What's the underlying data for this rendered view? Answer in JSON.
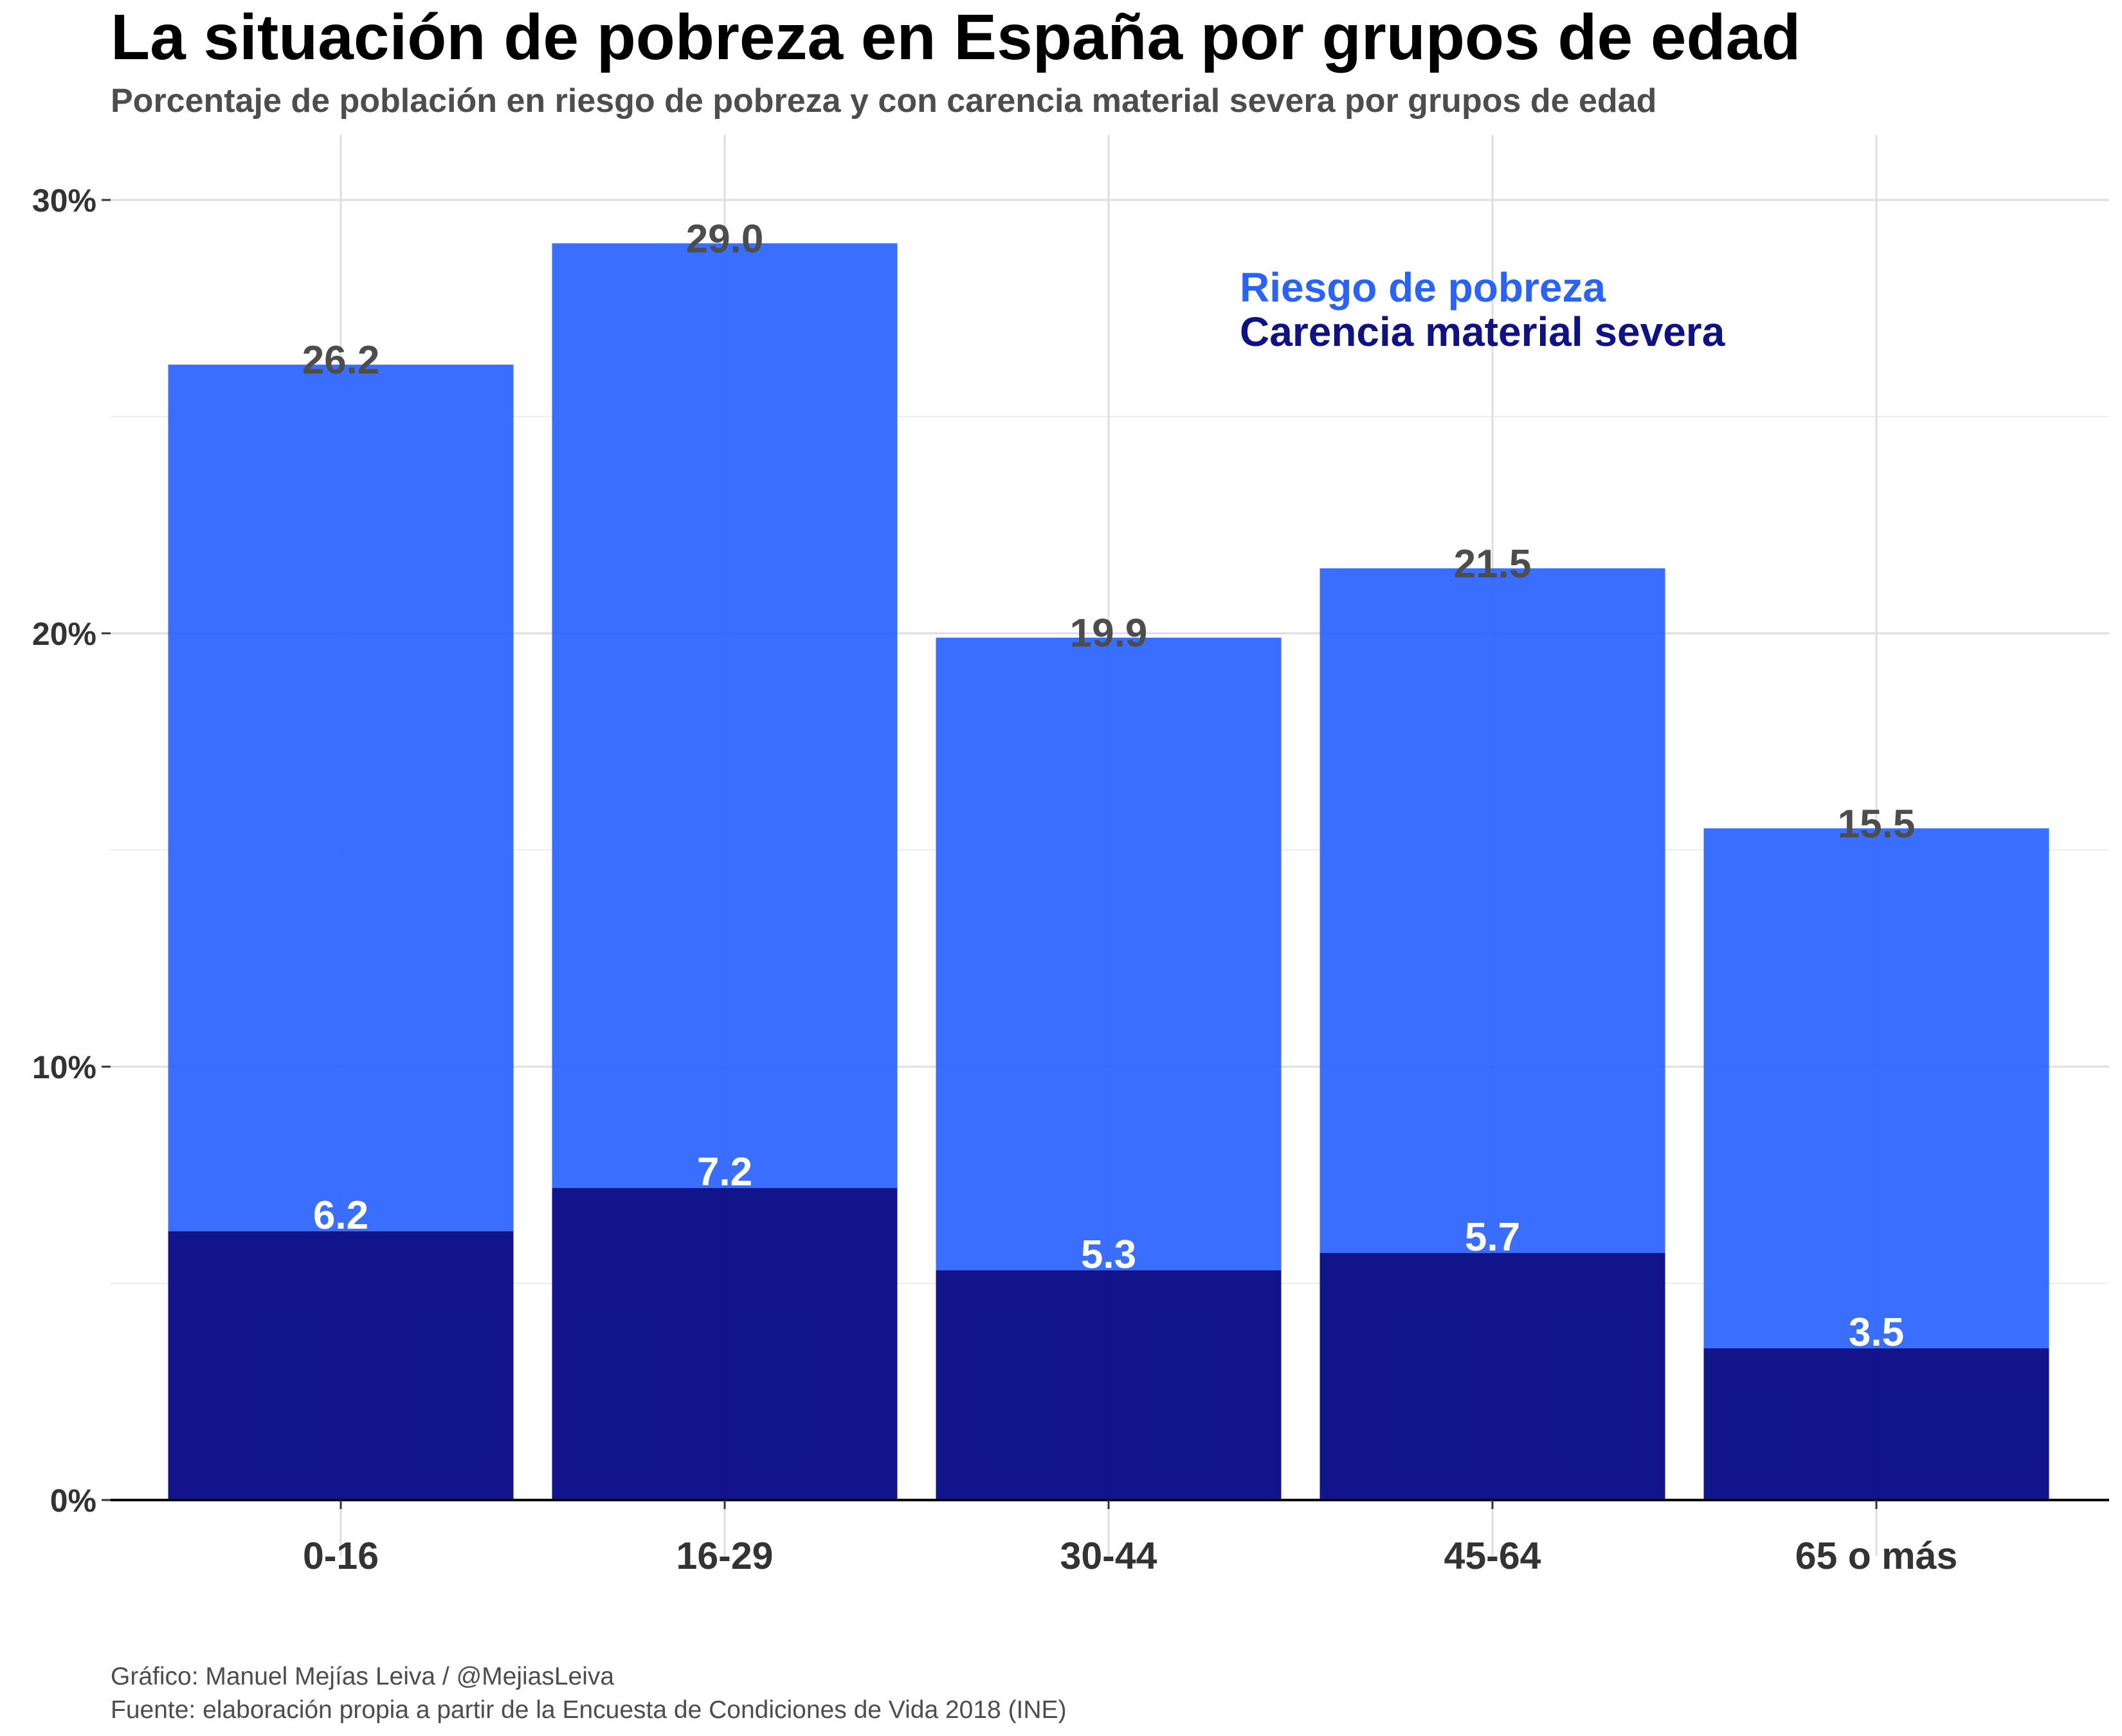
{
  "chart_data": {
    "type": "bar",
    "title": "La situación de pobreza en España por grupos de edad",
    "subtitle": "Porcentaje de población en riesgo de pobreza y con carencia material severa por grupos de edad",
    "xlabel": "",
    "ylabel": "",
    "ylim": [
      0,
      30
    ],
    "yticks": [
      {
        "value": 0,
        "label": "0%"
      },
      {
        "value": 10,
        "label": "10%"
      },
      {
        "value": 20,
        "label": "20%"
      },
      {
        "value": 30,
        "label": "30%"
      }
    ],
    "y_minor_gridlines": [
      5,
      15,
      25
    ],
    "grid": true,
    "categories": [
      "0-16",
      "16-29",
      "30-44",
      "45-64",
      "65 o más"
    ],
    "series": [
      {
        "name": "Riesgo de pobreza",
        "values": [
          26.2,
          29.0,
          19.9,
          21.5,
          15.5
        ],
        "labels": [
          "26.2",
          "29.0",
          "19.9",
          "21.5",
          "15.5"
        ],
        "color": "#2962ff"
      },
      {
        "name": "Carencia material severa",
        "values": [
          6.2,
          7.2,
          5.3,
          5.7,
          3.5
        ],
        "labels": [
          "6.2",
          "7.2",
          "5.3",
          "5.7",
          "3.5"
        ],
        "color": "#0f1286"
      }
    ],
    "legend_position": "top-right",
    "caption": [
      "Gráfico: Manuel Mejías Leiva / @MejiasLeiva",
      "Fuente: elaboración propia a partir de la Encuesta de Condiciones de Vida 2018 (INE)"
    ]
  }
}
